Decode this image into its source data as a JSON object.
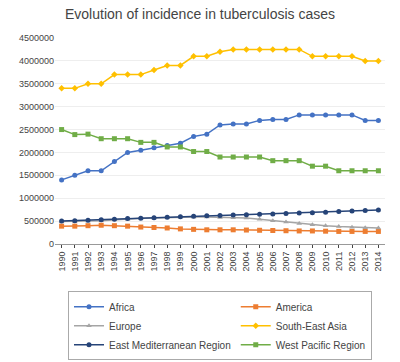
{
  "chart_data": {
    "type": "line",
    "title": "Evolution of incidence in tuberculosis cases",
    "x": [
      1990,
      1991,
      1992,
      1993,
      1994,
      1995,
      1996,
      1997,
      1998,
      1999,
      2000,
      2001,
      2002,
      2003,
      2004,
      2005,
      2006,
      2007,
      2008,
      2009,
      2010,
      2011,
      2012,
      2013,
      2014
    ],
    "series": [
      {
        "name": "Africa",
        "color": "#4472C4",
        "marker": "circle",
        "values": [
          1400000,
          1500000,
          1600000,
          1600000,
          1800000,
          2000000,
          2050000,
          2100000,
          2150000,
          2200000,
          2350000,
          2400000,
          2600000,
          2620000,
          2620000,
          2700000,
          2720000,
          2720000,
          2820000,
          2820000,
          2820000,
          2820000,
          2820000,
          2700000,
          2700000
        ]
      },
      {
        "name": "America",
        "color": "#ED7D31",
        "marker": "square",
        "values": [
          390000,
          390000,
          400000,
          410000,
          400000,
          390000,
          370000,
          360000,
          350000,
          330000,
          320000,
          310000,
          310000,
          310000,
          305000,
          300000,
          295000,
          290000,
          285000,
          285000,
          280000,
          275000,
          275000,
          275000,
          275000
        ]
      },
      {
        "name": "Europe",
        "color": "#A5A5A5",
        "marker": "triangle-up",
        "values": [
          490000,
          490000,
          500000,
          510000,
          530000,
          540000,
          560000,
          570000,
          580000,
          590000,
          590000,
          590000,
          580000,
          575000,
          570000,
          540000,
          510000,
          480000,
          450000,
          420000,
          400000,
          380000,
          365000,
          355000,
          350000
        ]
      },
      {
        "name": "South-East Asia",
        "color": "#FFC000",
        "marker": "diamond",
        "values": [
          3400000,
          3400000,
          3500000,
          3500000,
          3700000,
          3700000,
          3700000,
          3800000,
          3900000,
          3900000,
          4100000,
          4100000,
          4200000,
          4250000,
          4250000,
          4250000,
          4250000,
          4250000,
          4250000,
          4100000,
          4100000,
          4100000,
          4100000,
          4000000,
          4000000
        ]
      },
      {
        "name": "East Mediterranean Region",
        "color": "#264478",
        "marker": "circle",
        "values": [
          500000,
          510000,
          520000,
          530000,
          540000,
          555000,
          565000,
          575000,
          585000,
          595000,
          605000,
          615000,
          625000,
          635000,
          640000,
          650000,
          655000,
          665000,
          675000,
          685000,
          695000,
          710000,
          720000,
          730000,
          740000
        ]
      },
      {
        "name": "West Pacific Region",
        "color": "#70AD47",
        "marker": "square",
        "values": [
          2500000,
          2390000,
          2400000,
          2300000,
          2300000,
          2300000,
          2220000,
          2220000,
          2120000,
          2120000,
          2020000,
          2020000,
          1900000,
          1900000,
          1900000,
          1900000,
          1820000,
          1820000,
          1820000,
          1700000,
          1700000,
          1600000,
          1600000,
          1600000,
          1600000
        ]
      }
    ],
    "xlim": [
      1989.5,
      2014.5
    ],
    "xticks": [
      1990,
      1991,
      1992,
      1993,
      1994,
      1995,
      1996,
      1997,
      1998,
      1999,
      2000,
      2001,
      2002,
      2003,
      2004,
      2005,
      2006,
      2007,
      2008,
      2009,
      2010,
      2011,
      2012,
      2013,
      2014
    ],
    "ylim": [
      0,
      4500000
    ],
    "yticks": [
      0,
      500000,
      1000000,
      1500000,
      2000000,
      2500000,
      3000000,
      3500000,
      4000000,
      4500000
    ],
    "grid": "y",
    "legend": "bottom"
  }
}
